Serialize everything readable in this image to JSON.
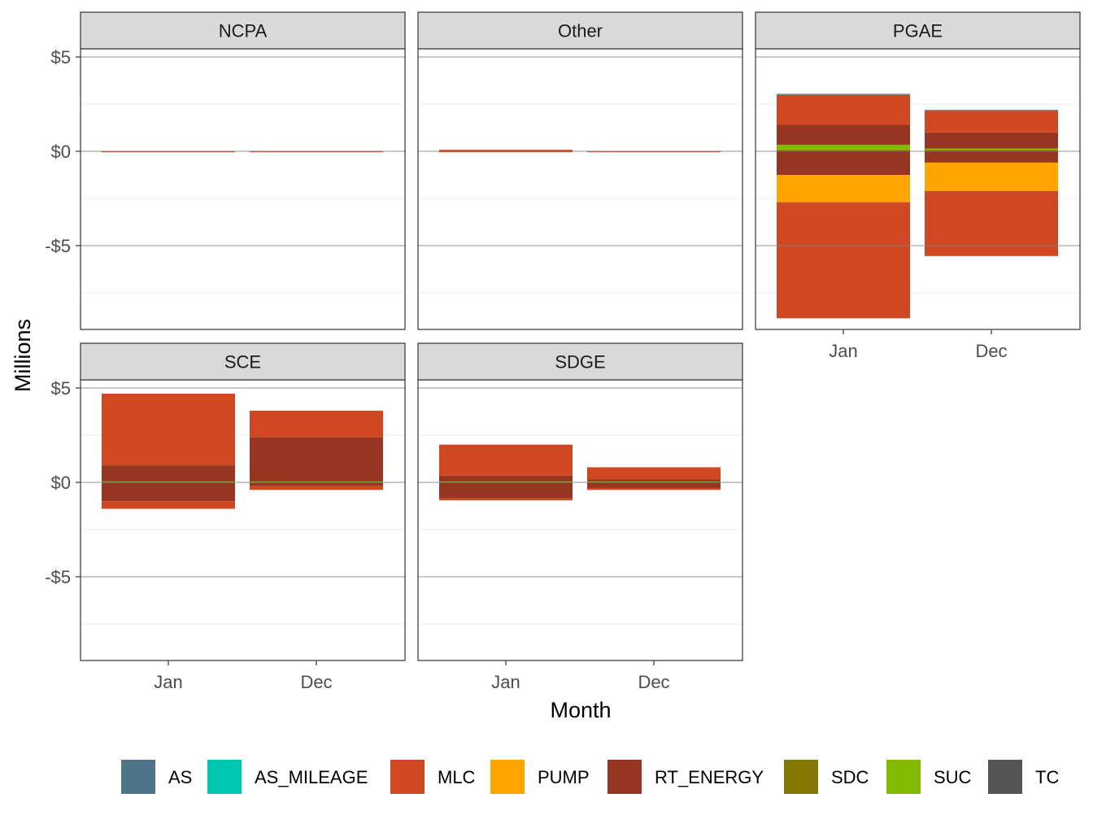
{
  "chart_data": {
    "type": "bar",
    "stacked": true,
    "facet_variable": "entity",
    "categories": [
      "Jan",
      "Dec"
    ],
    "xlabel": "Month",
    "ylabel": "Millions",
    "y_unit": "millions of dollars",
    "ylim": [
      -9.5,
      7.5
    ],
    "y_ticks": [
      5,
      0,
      -5
    ],
    "y_tick_labels": [
      "$5",
      "$0",
      "-$5"
    ],
    "grid": true,
    "legend_position": "bottom",
    "series_colors": {
      "AS": "#4e7489",
      "AS_MILEAGE": "#00c6b2",
      "MLC": "#d04822",
      "PUMP": "#fea502",
      "RT_ENERGY": "#973522",
      "SDC": "#857802",
      "SUC": "#83bb02",
      "TC": "#555555"
    },
    "legend": [
      "AS",
      "AS_MILEAGE",
      "MLC",
      "PUMP",
      "RT_ENERGY",
      "SDC",
      "SUC",
      "TC"
    ],
    "facets": [
      {
        "name": "NCPA",
        "series": [
          {
            "name": "MLC",
            "values": [
              [
                0,
                0.02
              ],
              [
                0,
                0.02
              ]
            ]
          },
          {
            "name": "MLC",
            "values": [
              [
                -0.02,
                0
              ],
              [
                -0.02,
                0
              ]
            ]
          }
        ]
      },
      {
        "name": "Other",
        "series": [
          {
            "name": "MLC",
            "values": [
              [
                0,
                0.08
              ],
              [
                0,
                0.02
              ]
            ]
          },
          {
            "name": "MLC",
            "values": [
              [
                -0.02,
                0
              ],
              [
                -0.03,
                0
              ]
            ]
          }
        ]
      },
      {
        "name": "PGAE",
        "series": [
          {
            "name": "RT_ENERGY",
            "values": [
              [
                0,
                1.4
              ],
              [
                0,
                1.0
              ]
            ]
          },
          {
            "name": "MLC",
            "values": [
              [
                1.4,
                3.0
              ],
              [
                1.0,
                2.2
              ]
            ]
          },
          {
            "name": "AS_MILEAGE",
            "values": [
              [
                3.0,
                3.05
              ],
              [
                2.2,
                2.2
              ]
            ]
          },
          {
            "name": "RT_ENERGY",
            "values": [
              [
                -1.25,
                0
              ],
              [
                -0.6,
                0
              ]
            ]
          },
          {
            "name": "PUMP",
            "values": [
              [
                -2.7,
                -1.25
              ],
              [
                -2.1,
                -0.6
              ]
            ]
          },
          {
            "name": "MLC",
            "values": [
              [
                -8.85,
                -2.7
              ],
              [
                -5.55,
                -2.1
              ]
            ]
          },
          {
            "name": "SUC",
            "values": [
              [
                0.05,
                0.35
              ],
              [
                0.05,
                0.15
              ]
            ]
          }
        ]
      },
      {
        "name": "SCE",
        "series": [
          {
            "name": "RT_ENERGY",
            "values": [
              [
                0,
                0.9
              ],
              [
                0,
                2.4
              ]
            ]
          },
          {
            "name": "MLC",
            "values": [
              [
                0.9,
                4.7
              ],
              [
                2.4,
                3.8
              ]
            ]
          },
          {
            "name": "RT_ENERGY",
            "values": [
              [
                -1.0,
                0
              ],
              [
                -0.2,
                0
              ]
            ]
          },
          {
            "name": "MLC",
            "values": [
              [
                -1.4,
                -1.0
              ],
              [
                -0.4,
                -0.2
              ]
            ]
          },
          {
            "name": "SUC",
            "values": [
              [
                0,
                0.05
              ],
              [
                0,
                0.05
              ]
            ]
          }
        ]
      },
      {
        "name": "SDGE",
        "series": [
          {
            "name": "RT_ENERGY",
            "values": [
              [
                0,
                0.35
              ],
              [
                0,
                0.15
              ]
            ]
          },
          {
            "name": "MLC",
            "values": [
              [
                0.35,
                2.0
              ],
              [
                0.15,
                0.8
              ]
            ]
          },
          {
            "name": "RT_ENERGY",
            "values": [
              [
                -0.85,
                0
              ],
              [
                -0.3,
                0
              ]
            ]
          },
          {
            "name": "MLC",
            "values": [
              [
                -0.95,
                -0.85
              ],
              [
                -0.4,
                -0.3
              ]
            ]
          },
          {
            "name": "SUC",
            "values": [
              [
                0,
                0.05
              ],
              [
                0,
                0.05
              ]
            ]
          }
        ]
      }
    ]
  }
}
